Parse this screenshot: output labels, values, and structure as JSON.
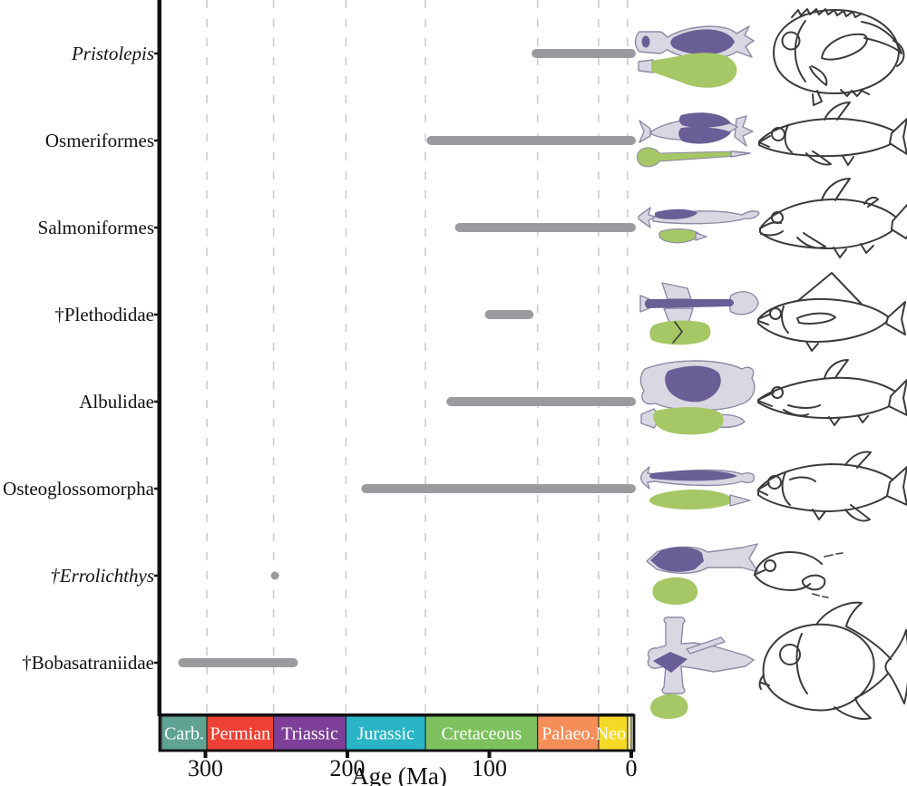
{
  "figure": {
    "background": "#ffffff",
    "description_names": [
      "stratigraphic-range-chart",
      "geological-timescale-band",
      "taxon-illustration-column"
    ]
  },
  "chart_data": {
    "type": "bar",
    "subtype": "horizontal-range-timeline",
    "title": "",
    "xlabel": "Age (Ma)",
    "ylabel": "",
    "xlim": [
      331,
      0
    ],
    "x_ticks": [
      300,
      200,
      100,
      0
    ],
    "grid": "dashed-vertical-at-period-boundaries",
    "gridline_ages": [
      299,
      252,
      201,
      145,
      66,
      23,
      2.6
    ],
    "legend": "none",
    "categories": [
      "Pristolepis",
      "Osmeriformes",
      "Salmoniformes",
      "†Plethodidae",
      "Albulidae",
      "Osteoglossomorpha",
      "†Errolichthys",
      "†Bobasatraniidae"
    ],
    "italic_flags": [
      true,
      false,
      false,
      false,
      false,
      false,
      true,
      false
    ],
    "series": [
      {
        "name": "stratigraphic-range",
        "ranges_ma": [
          [
            67,
            0
          ],
          [
            141,
            0
          ],
          [
            121,
            0
          ],
          [
            100,
            72
          ],
          [
            127,
            0
          ],
          [
            187,
            0
          ],
          [
            251,
            251
          ],
          [
            316,
            238
          ]
        ]
      }
    ],
    "geological_periods": [
      {
        "label": "Carb.",
        "from_ma": 331,
        "to_ma": 299,
        "color": "#5fa392"
      },
      {
        "label": "Permian",
        "from_ma": 299,
        "to_ma": 252,
        "color": "#ee4035"
      },
      {
        "label": "Triassic",
        "from_ma": 252,
        "to_ma": 201,
        "color": "#7d3f98"
      },
      {
        "label": "Jurassic",
        "from_ma": 201,
        "to_ma": 145,
        "color": "#2ab5c6"
      },
      {
        "label": "Cretaceous",
        "from_ma": 145,
        "to_ma": 66,
        "color": "#7cc15e"
      },
      {
        "label": "Palaeo.",
        "from_ma": 66,
        "to_ma": 23,
        "color": "#f68e5a"
      },
      {
        "label": "Neo.",
        "from_ma": 23,
        "to_ma": 2.6,
        "color": "#f5d929"
      },
      {
        "label": "",
        "from_ma": 2.6,
        "to_ma": 0,
        "color": "#f2eca4"
      }
    ]
  },
  "colors": {
    "range_bar": "#9b9a9e",
    "gridline": "#cccccc",
    "axis": "#111111",
    "diagram_body": "#d9d7e2",
    "diagram_body_stroke": "#8d8aa5",
    "diagram_upper_shape": "#6a5e96",
    "diagram_lower_shape": "#a6c765",
    "fish_outline": "#3b3b3b"
  },
  "illustrations": [
    {
      "taxon": "Pristolepis",
      "diagram_icon": "pristolepis-diagram-icon",
      "fish_icon": "pristolepis-fish-icon"
    },
    {
      "taxon": "Osmeriformes",
      "diagram_icon": "osmeriformes-diagram-icon",
      "fish_icon": "osmeriformes-fish-icon"
    },
    {
      "taxon": "Salmoniformes",
      "diagram_icon": "salmoniformes-diagram-icon",
      "fish_icon": "salmoniformes-fish-icon"
    },
    {
      "taxon": "†Plethodidae",
      "diagram_icon": "plethodidae-diagram-icon",
      "fish_icon": "plethodidae-fish-icon"
    },
    {
      "taxon": "Albulidae",
      "diagram_icon": "albulidae-diagram-icon",
      "fish_icon": "albulidae-fish-icon"
    },
    {
      "taxon": "Osteoglossomorpha",
      "diagram_icon": "osteoglossomorpha-diagram-icon",
      "fish_icon": "osteoglossomorpha-fish-icon"
    },
    {
      "taxon": "†Errolichthys",
      "diagram_icon": "errolichthys-diagram-icon",
      "fish_icon": "errolichthys-fish-icon"
    },
    {
      "taxon": "†Bobasatraniidae",
      "diagram_icon": "bobasatraniidae-diagram-icon",
      "fish_icon": "bobasatraniidae-fish-icon"
    }
  ]
}
